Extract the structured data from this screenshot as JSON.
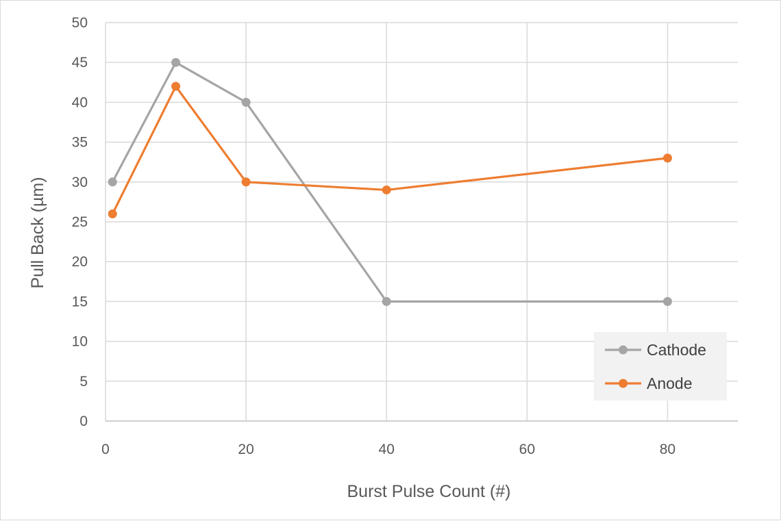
{
  "chart_data": {
    "type": "line",
    "xlabel": "Burst Pulse Count (#)",
    "ylabel": "Pull Back (µm)",
    "xlim": [
      0,
      90
    ],
    "ylim": [
      0,
      50
    ],
    "x_ticks": [
      0,
      20,
      40,
      60,
      80
    ],
    "y_ticks": [
      0,
      5,
      10,
      15,
      20,
      25,
      30,
      35,
      40,
      45,
      50
    ],
    "grid": true,
    "legend_position": "bottom-right",
    "series": [
      {
        "name": "Cathode",
        "color": "#a5a5a5",
        "x": [
          1,
          10,
          20,
          40,
          80
        ],
        "y": [
          30,
          45,
          40,
          15,
          15
        ]
      },
      {
        "name": "Anode",
        "color": "#ed7d31",
        "x": [
          1,
          10,
          20,
          40,
          80
        ],
        "y": [
          26,
          42,
          30,
          29,
          33
        ]
      }
    ]
  }
}
